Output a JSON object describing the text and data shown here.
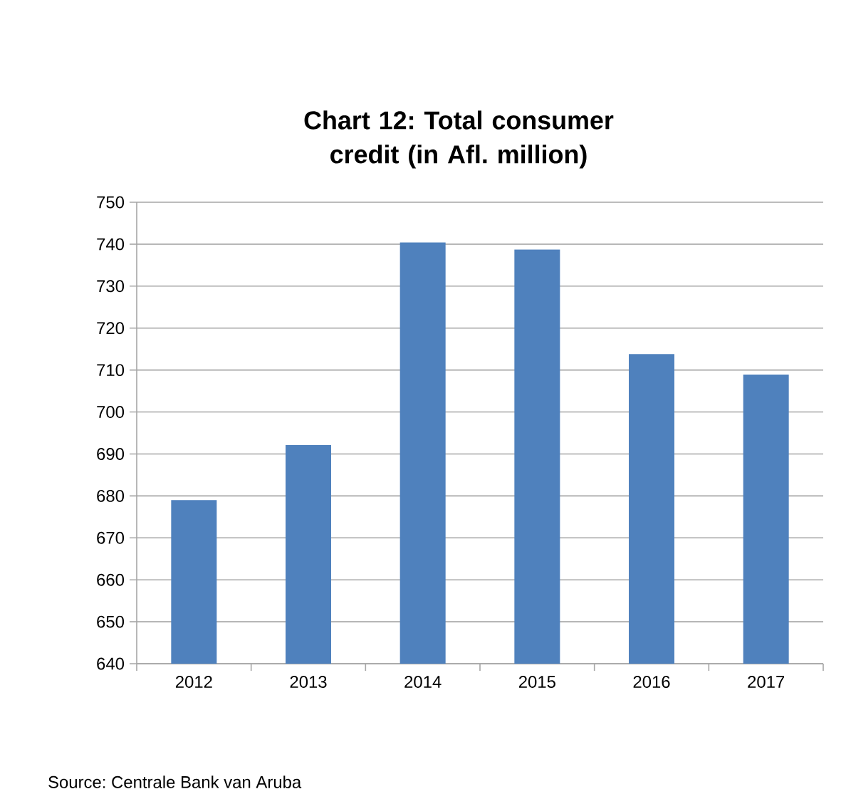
{
  "chart_data": {
    "type": "bar",
    "title": "Chart 12: Total consumer credit (in Afl. million)",
    "categories": [
      "2012",
      "2013",
      "2014",
      "2015",
      "2016",
      "2017"
    ],
    "values": [
      679,
      692.1,
      740.4,
      738.7,
      713.8,
      708.9
    ],
    "color": "#4f81bd",
    "ylim": [
      640,
      750
    ],
    "yticks": [
      640,
      650,
      660,
      670,
      680,
      690,
      700,
      710,
      720,
      730,
      740,
      750
    ],
    "grid": "y",
    "annotations": [
      "Source: Centrale Bank van Aruba"
    ]
  }
}
